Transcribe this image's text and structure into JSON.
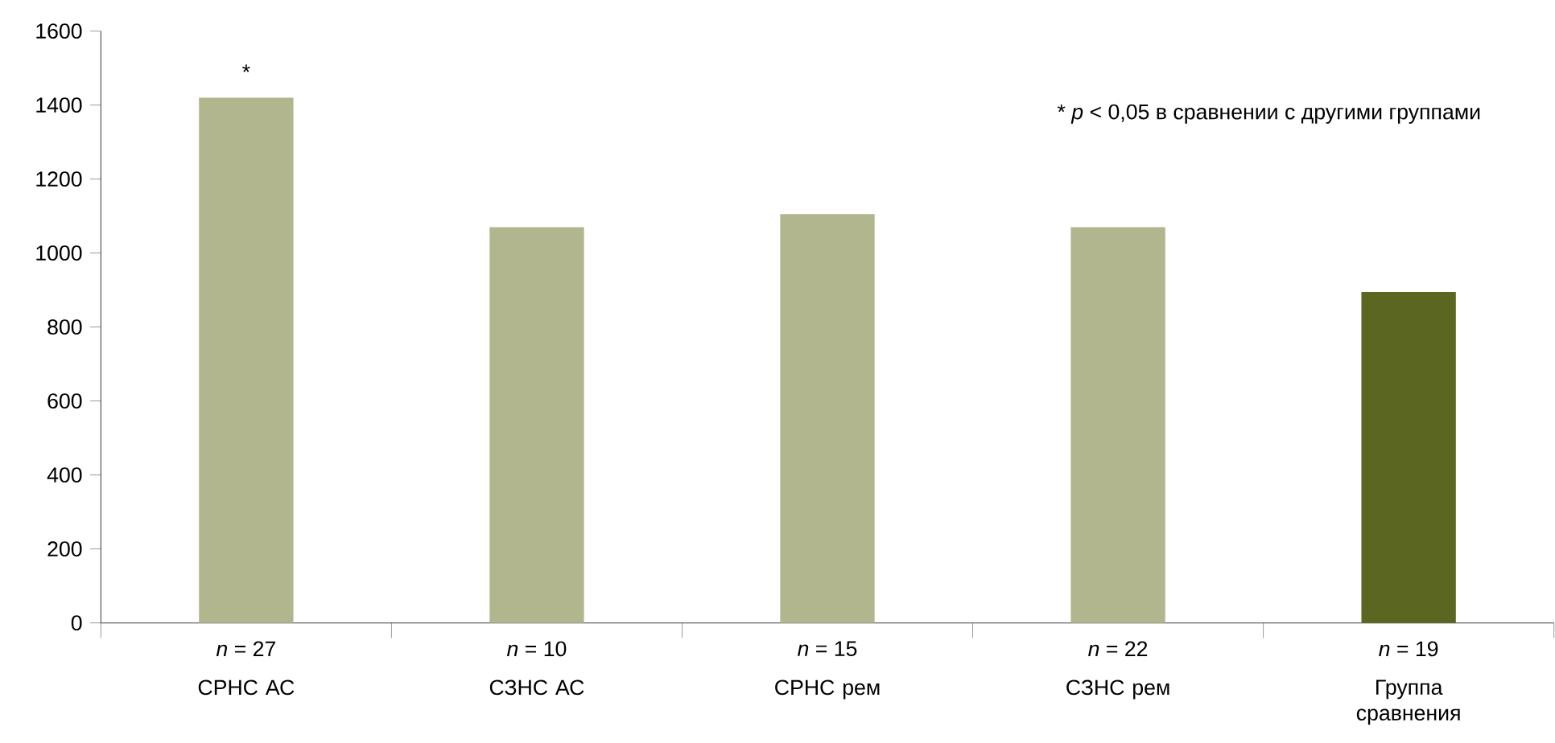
{
  "chart_data": {
    "type": "bar",
    "categories": [
      "СРНС  АС",
      "СЗНС АС",
      "СРНС рем",
      "СЗНС рем",
      "Группа сравнения"
    ],
    "values": [
      1420,
      1070,
      1105,
      1070,
      895
    ],
    "colors": [
      "#b1b68f",
      "#b1b68f",
      "#b1b68f",
      "#b1b68f",
      "#5b6720"
    ],
    "ylim": [
      0,
      1600
    ],
    "yticks": [
      0,
      200,
      400,
      600,
      800,
      1000,
      1200,
      1400,
      1600
    ],
    "annotations": [
      {
        "text": "*",
        "x": "СРНС  АС",
        "y": 1420
      },
      "* *p* < 0,05 в сравнении  с другими группами",
      "*n* = 27",
      "*n* = 10",
      "*n* = 15",
      "*n* = 22",
      "*n* = 19"
    ]
  }
}
